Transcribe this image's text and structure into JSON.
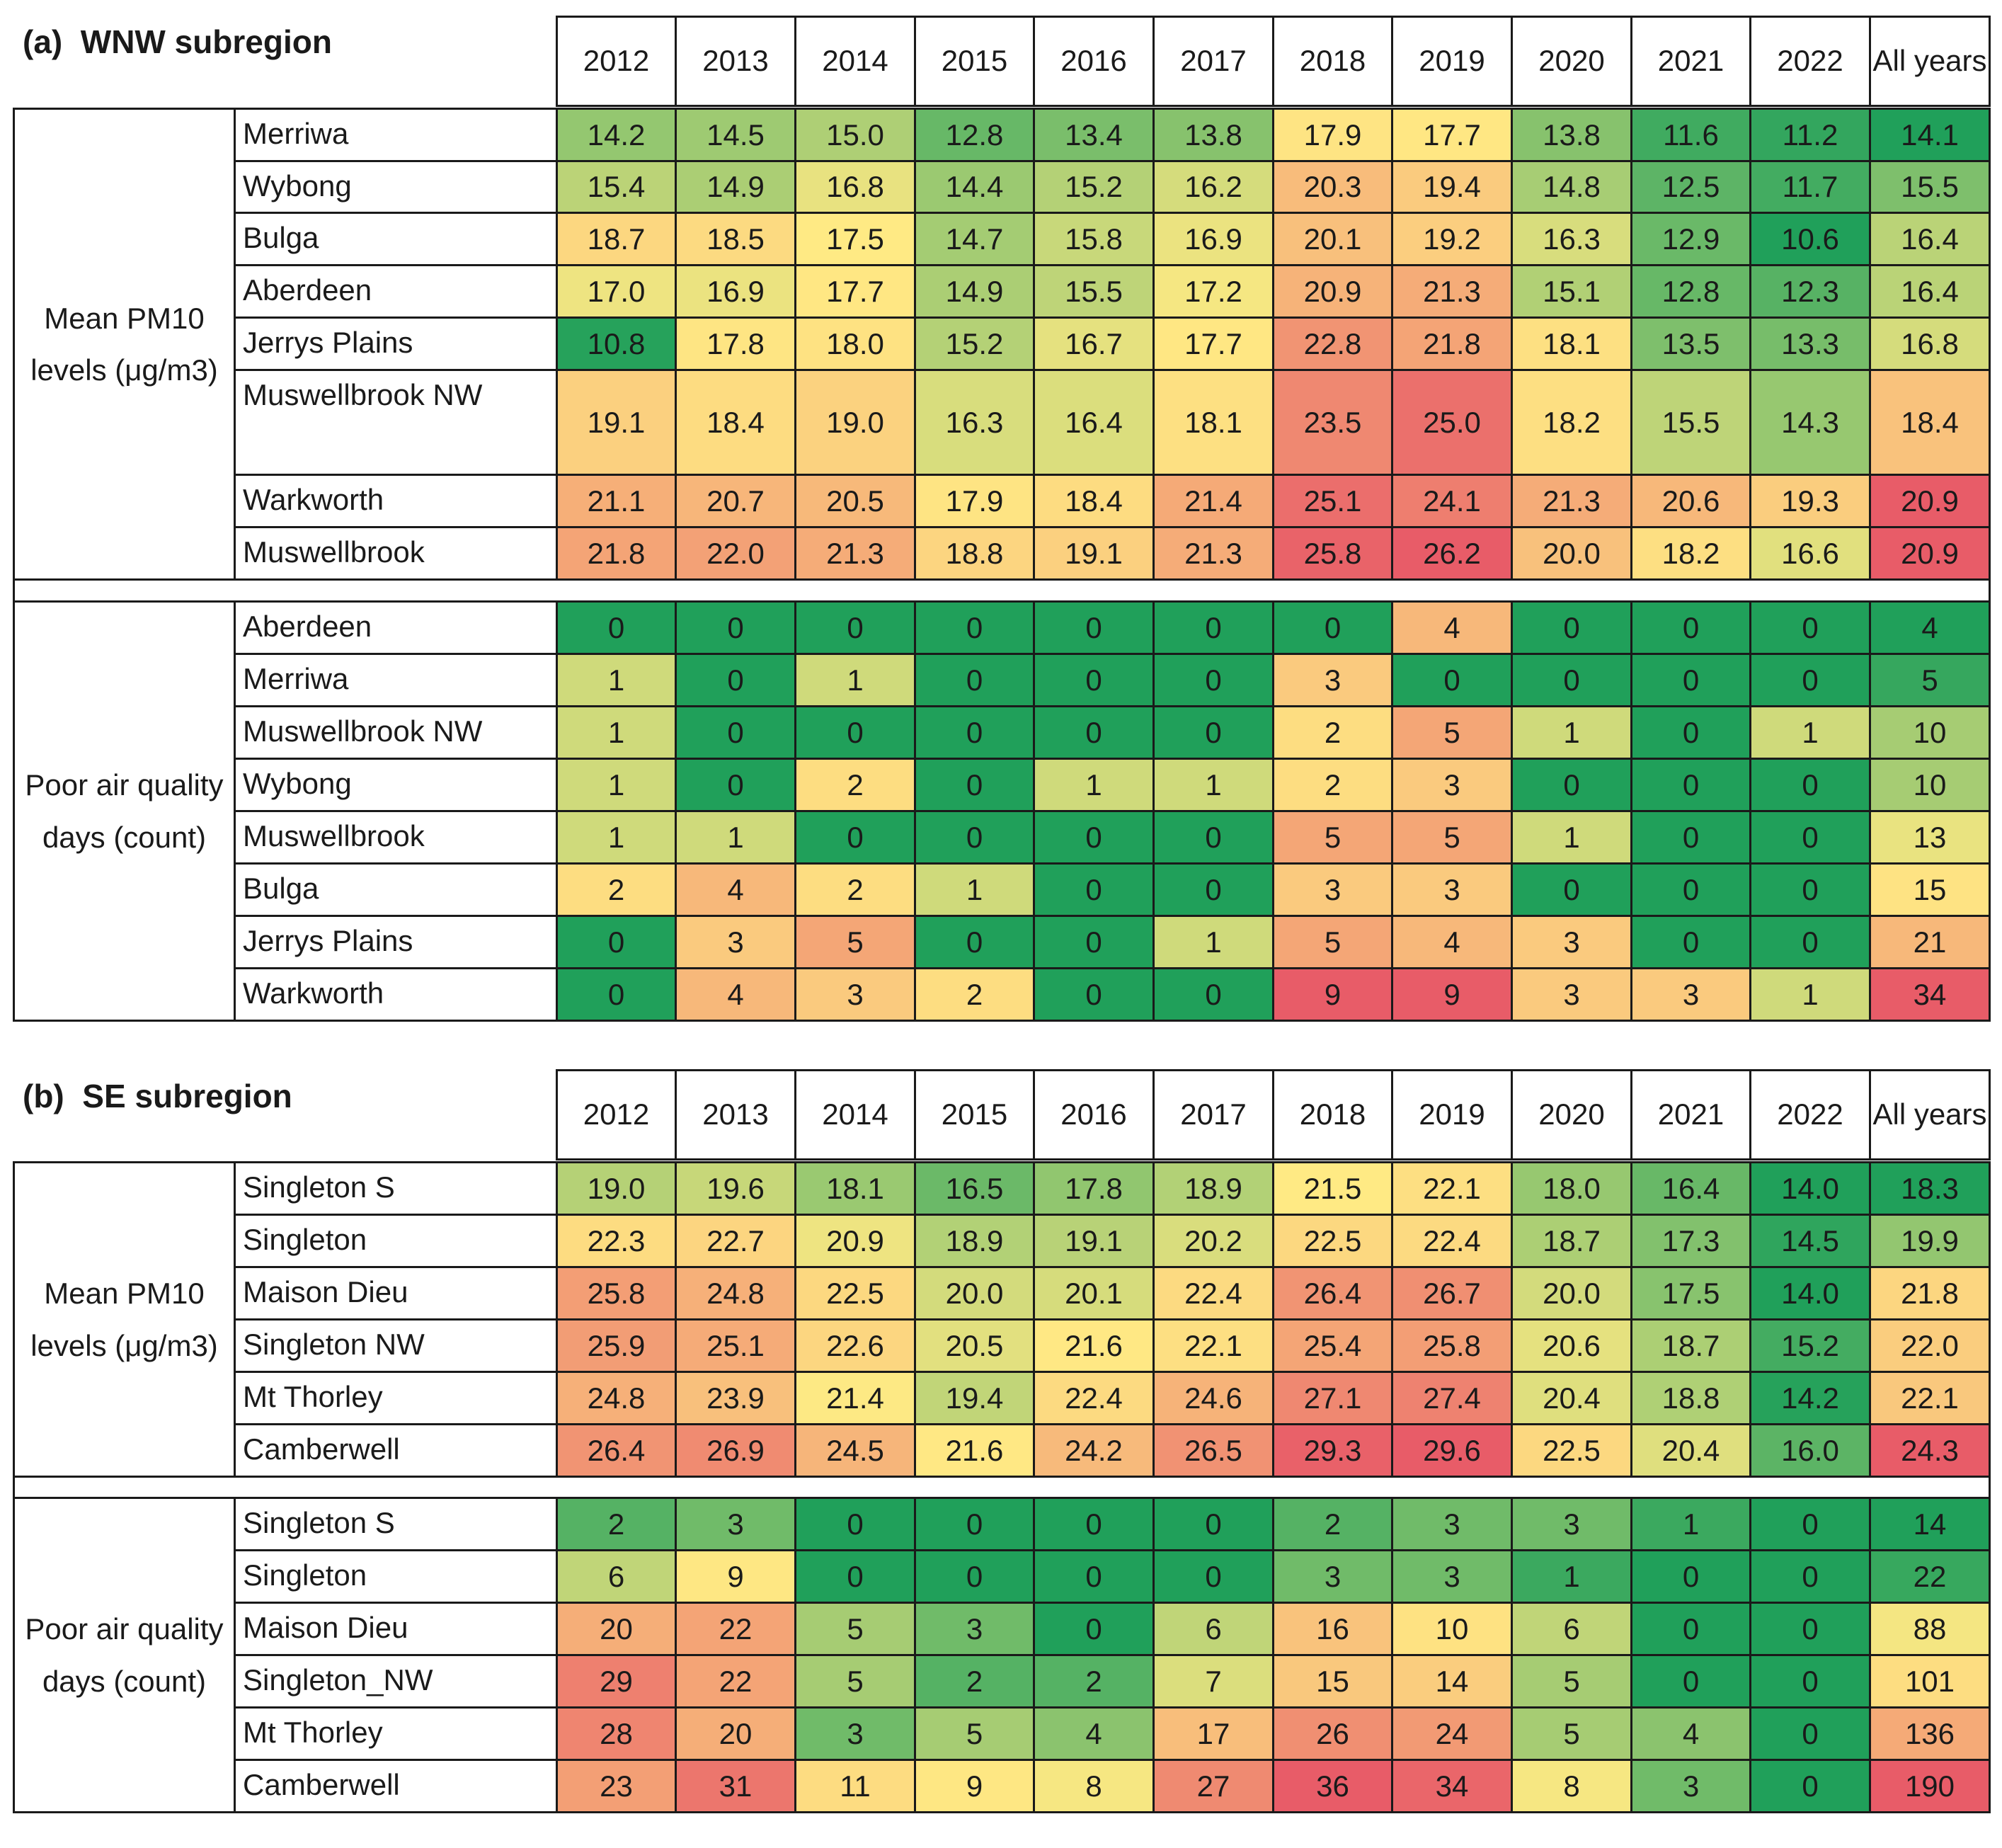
{
  "panels": [
    {
      "title": "(a)  WNW subregion",
      "columns": [
        "2012",
        "2013",
        "2014",
        "2015",
        "2016",
        "2017",
        "2018",
        "2019",
        "2020",
        "2021",
        "2022",
        "All years"
      ],
      "blocks": [
        {
          "label": "Mean PM10 levels (μg/m3)",
          "rows": [
            {
              "site": "Merriwa",
              "values": [
                "14.2",
                "14.5",
                "15.0",
                "12.8",
                "13.4",
                "13.8",
                "17.9",
                "17.7",
                "13.8",
                "11.6",
                "11.2",
                "14.1"
              ]
            },
            {
              "site": "Wybong",
              "values": [
                "15.4",
                "14.9",
                "16.8",
                "14.4",
                "15.2",
                "16.2",
                "20.3",
                "19.4",
                "14.8",
                "12.5",
                "11.7",
                "15.5"
              ]
            },
            {
              "site": "Bulga",
              "values": [
                "18.7",
                "18.5",
                "17.5",
                "14.7",
                "15.8",
                "16.9",
                "20.1",
                "19.2",
                "16.3",
                "12.9",
                "10.6",
                "16.4"
              ]
            },
            {
              "site": "Aberdeen",
              "values": [
                "17.0",
                "16.9",
                "17.7",
                "14.9",
                "15.5",
                "17.2",
                "20.9",
                "21.3",
                "15.1",
                "12.8",
                "12.3",
                "16.4"
              ]
            },
            {
              "site": "Jerrys Plains",
              "values": [
                "10.8",
                "17.8",
                "18.0",
                "15.2",
                "16.7",
                "17.7",
                "22.8",
                "21.8",
                "18.1",
                "13.5",
                "13.3",
                "16.8"
              ]
            },
            {
              "site": "Muswellbrook NW",
              "values": [
                "19.1",
                "18.4",
                "19.0",
                "16.3",
                "16.4",
                "18.1",
                "23.5",
                "25.0",
                "18.2",
                "15.5",
                "14.3",
                "18.4"
              ]
            },
            {
              "site": "Warkworth",
              "values": [
                "21.1",
                "20.7",
                "20.5",
                "17.9",
                "18.4",
                "21.4",
                "25.1",
                "24.1",
                "21.3",
                "20.6",
                "19.3",
                "20.9"
              ]
            },
            {
              "site": "Muswellbrook",
              "values": [
                "21.8",
                "22.0",
                "21.3",
                "18.8",
                "19.1",
                "21.3",
                "25.8",
                "26.2",
                "20.0",
                "18.2",
                "16.6",
                "20.9"
              ]
            }
          ]
        },
        {
          "label": "Poor air quality days (count)",
          "rows": [
            {
              "site": "Aberdeen",
              "values": [
                0,
                0,
                0,
                0,
                0,
                0,
                0,
                4,
                0,
                0,
                0,
                4
              ]
            },
            {
              "site": "Merriwa",
              "values": [
                1,
                0,
                1,
                0,
                0,
                0,
                3,
                0,
                0,
                0,
                0,
                5
              ]
            },
            {
              "site": "Muswellbrook NW",
              "values": [
                1,
                0,
                0,
                0,
                0,
                0,
                2,
                5,
                1,
                0,
                1,
                10
              ]
            },
            {
              "site": "Wybong",
              "values": [
                1,
                0,
                2,
                0,
                1,
                1,
                2,
                3,
                0,
                0,
                0,
                10
              ]
            },
            {
              "site": "Muswellbrook",
              "values": [
                1,
                1,
                0,
                0,
                0,
                0,
                5,
                5,
                1,
                0,
                0,
                13
              ]
            },
            {
              "site": "Bulga",
              "values": [
                2,
                4,
                2,
                1,
                0,
                0,
                3,
                3,
                0,
                0,
                0,
                15
              ]
            },
            {
              "site": "Jerrys Plains",
              "values": [
                0,
                3,
                5,
                0,
                0,
                1,
                5,
                4,
                3,
                0,
                0,
                21
              ]
            },
            {
              "site": "Warkworth",
              "values": [
                0,
                4,
                3,
                2,
                0,
                0,
                9,
                9,
                3,
                3,
                1,
                34
              ]
            }
          ]
        }
      ]
    },
    {
      "title": "(b)  SE subregion",
      "columns": [
        "2012",
        "2013",
        "2014",
        "2015",
        "2016",
        "2017",
        "2018",
        "2019",
        "2020",
        "2021",
        "2022",
        "All years"
      ],
      "blocks": [
        {
          "label": "Mean PM10 levels (μg/m3)",
          "rows": [
            {
              "site": "Singleton S",
              "values": [
                "19.0",
                "19.6",
                "18.1",
                "16.5",
                "17.8",
                "18.9",
                "21.5",
                "22.1",
                "18.0",
                "16.4",
                "14.0",
                "18.3"
              ]
            },
            {
              "site": "Singleton",
              "values": [
                "22.3",
                "22.7",
                "20.9",
                "18.9",
                "19.1",
                "20.2",
                "22.5",
                "22.4",
                "18.7",
                "17.3",
                "14.5",
                "19.9"
              ]
            },
            {
              "site": "Maison Dieu",
              "values": [
                "25.8",
                "24.8",
                "22.5",
                "20.0",
                "20.1",
                "22.4",
                "26.4",
                "26.7",
                "20.0",
                "17.5",
                "14.0",
                "21.8"
              ]
            },
            {
              "site": "Singleton NW",
              "values": [
                "25.9",
                "25.1",
                "22.6",
                "20.5",
                "21.6",
                "22.1",
                "25.4",
                "25.8",
                "20.6",
                "18.7",
                "15.2",
                "22.0"
              ]
            },
            {
              "site": "Mt Thorley",
              "values": [
                "24.8",
                "23.9",
                "21.4",
                "19.4",
                "22.4",
                "24.6",
                "27.1",
                "27.4",
                "20.4",
                "18.8",
                "14.2",
                "22.1"
              ]
            },
            {
              "site": "Camberwell",
              "values": [
                "26.4",
                "26.9",
                "24.5",
                "21.6",
                "24.2",
                "26.5",
                "29.3",
                "29.6",
                "22.5",
                "20.4",
                "16.0",
                "24.3"
              ]
            }
          ]
        },
        {
          "label": "Poor air quality days (count)",
          "rows": [
            {
              "site": "Singleton S",
              "values": [
                2,
                3,
                0,
                0,
                0,
                0,
                2,
                3,
                3,
                1,
                0,
                14
              ]
            },
            {
              "site": "Singleton",
              "values": [
                6,
                9,
                0,
                0,
                0,
                0,
                3,
                3,
                1,
                0,
                0,
                22
              ]
            },
            {
              "site": "Maison Dieu",
              "values": [
                20,
                22,
                5,
                3,
                0,
                6,
                16,
                10,
                6,
                0,
                0,
                88
              ]
            },
            {
              "site": "Singleton_NW",
              "values": [
                29,
                22,
                5,
                2,
                2,
                7,
                15,
                14,
                5,
                0,
                0,
                101
              ]
            },
            {
              "site": "Mt Thorley",
              "values": [
                28,
                20,
                3,
                5,
                4,
                17,
                26,
                24,
                5,
                4,
                0,
                136
              ]
            },
            {
              "site": "Camberwell",
              "values": [
                23,
                31,
                11,
                9,
                8,
                27,
                36,
                34,
                8,
                3,
                0,
                190
              ]
            }
          ]
        }
      ]
    }
  ]
}
